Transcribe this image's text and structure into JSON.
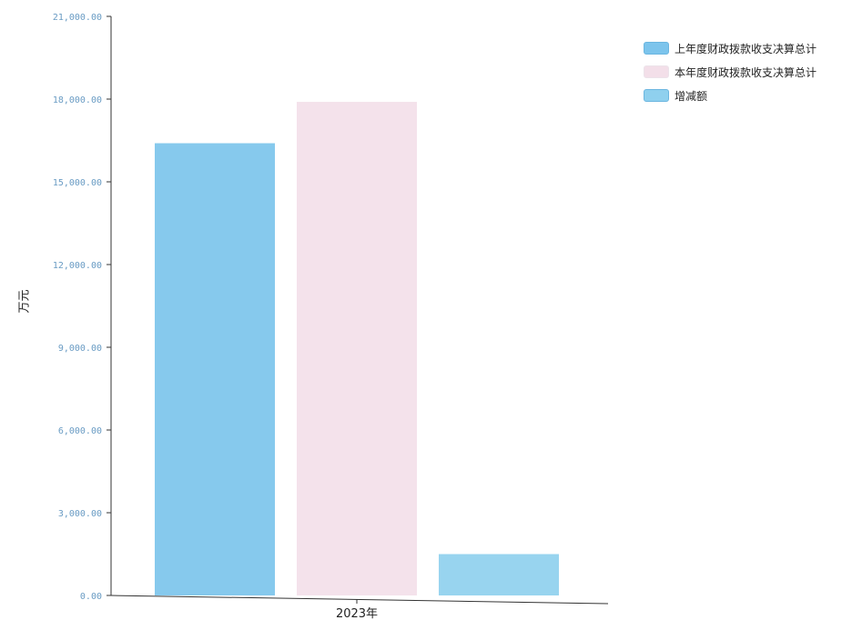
{
  "chart_data": {
    "type": "bar",
    "categories": [
      "2023年"
    ],
    "series": [
      {
        "name": "上年度财政拨款收支决算总计",
        "values": [
          16400
        ]
      },
      {
        "name": "本年度财政拨款收支决算总计",
        "values": [
          17900
        ]
      },
      {
        "name": "增减额",
        "values": [
          1500
        ]
      }
    ],
    "ylabel": "万元",
    "ylim": [
      0,
      21000
    ],
    "yticks": [
      0,
      3000,
      6000,
      9000,
      12000,
      15000,
      18000,
      21000
    ],
    "ytick_labels": [
      "0.00",
      "3,000.00",
      "6,000.00",
      "9,000.00",
      "12,000.00",
      "15,000.00",
      "18,000.00",
      "21,000.00"
    ],
    "grid": false,
    "legend_position": "top-right",
    "colors": [
      "#7cc4ec",
      "#f3dfe9",
      "#8fd0ee"
    ]
  }
}
